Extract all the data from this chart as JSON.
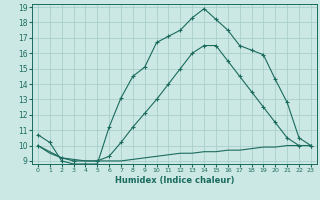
{
  "xlabel": "Humidex (Indice chaleur)",
  "bg_color": "#cce8e4",
  "grid_color": "#aacfcb",
  "line_color": "#1a6b5e",
  "xlim": [
    -0.5,
    23.5
  ],
  "ylim": [
    8.8,
    19.2
  ],
  "xticks": [
    0,
    1,
    2,
    3,
    4,
    5,
    6,
    7,
    8,
    9,
    10,
    11,
    12,
    13,
    14,
    15,
    16,
    17,
    18,
    19,
    20,
    21,
    22,
    23
  ],
  "yticks": [
    9,
    10,
    11,
    12,
    13,
    14,
    15,
    16,
    17,
    18,
    19
  ],
  "curve1_x": [
    0,
    1,
    2,
    3,
    4,
    5,
    6,
    7,
    8,
    9,
    10,
    11,
    12,
    13,
    14,
    15,
    16,
    17,
    18,
    19,
    20,
    21,
    22,
    23
  ],
  "curve1_y": [
    10.7,
    10.2,
    9.0,
    8.8,
    8.8,
    8.8,
    11.2,
    13.1,
    14.5,
    15.1,
    16.7,
    17.1,
    17.5,
    18.3,
    18.9,
    18.2,
    17.5,
    16.5,
    16.2,
    15.9,
    14.3,
    12.8,
    10.5,
    10.0
  ],
  "curve2_x": [
    0,
    2,
    3,
    5,
    6,
    7,
    8,
    9,
    10,
    11,
    12,
    13,
    14,
    15,
    16,
    17,
    18,
    19,
    20,
    21,
    22,
    23
  ],
  "curve2_y": [
    10.0,
    9.2,
    9.0,
    9.0,
    9.3,
    10.2,
    11.2,
    12.1,
    13.0,
    14.0,
    15.0,
    16.0,
    16.5,
    16.5,
    15.5,
    14.5,
    13.5,
    12.5,
    11.5,
    10.5,
    10.0,
    10.0
  ],
  "curve3_x": [
    0,
    1,
    2,
    3,
    4,
    5,
    6,
    7,
    8,
    9,
    10,
    11,
    12,
    13,
    14,
    15,
    16,
    17,
    18,
    19,
    20,
    21,
    22,
    23
  ],
  "curve3_y": [
    10.0,
    9.5,
    9.2,
    9.1,
    9.0,
    9.0,
    9.0,
    9.0,
    9.1,
    9.2,
    9.3,
    9.4,
    9.5,
    9.5,
    9.6,
    9.6,
    9.7,
    9.7,
    9.8,
    9.9,
    9.9,
    10.0,
    10.0,
    10.0
  ]
}
